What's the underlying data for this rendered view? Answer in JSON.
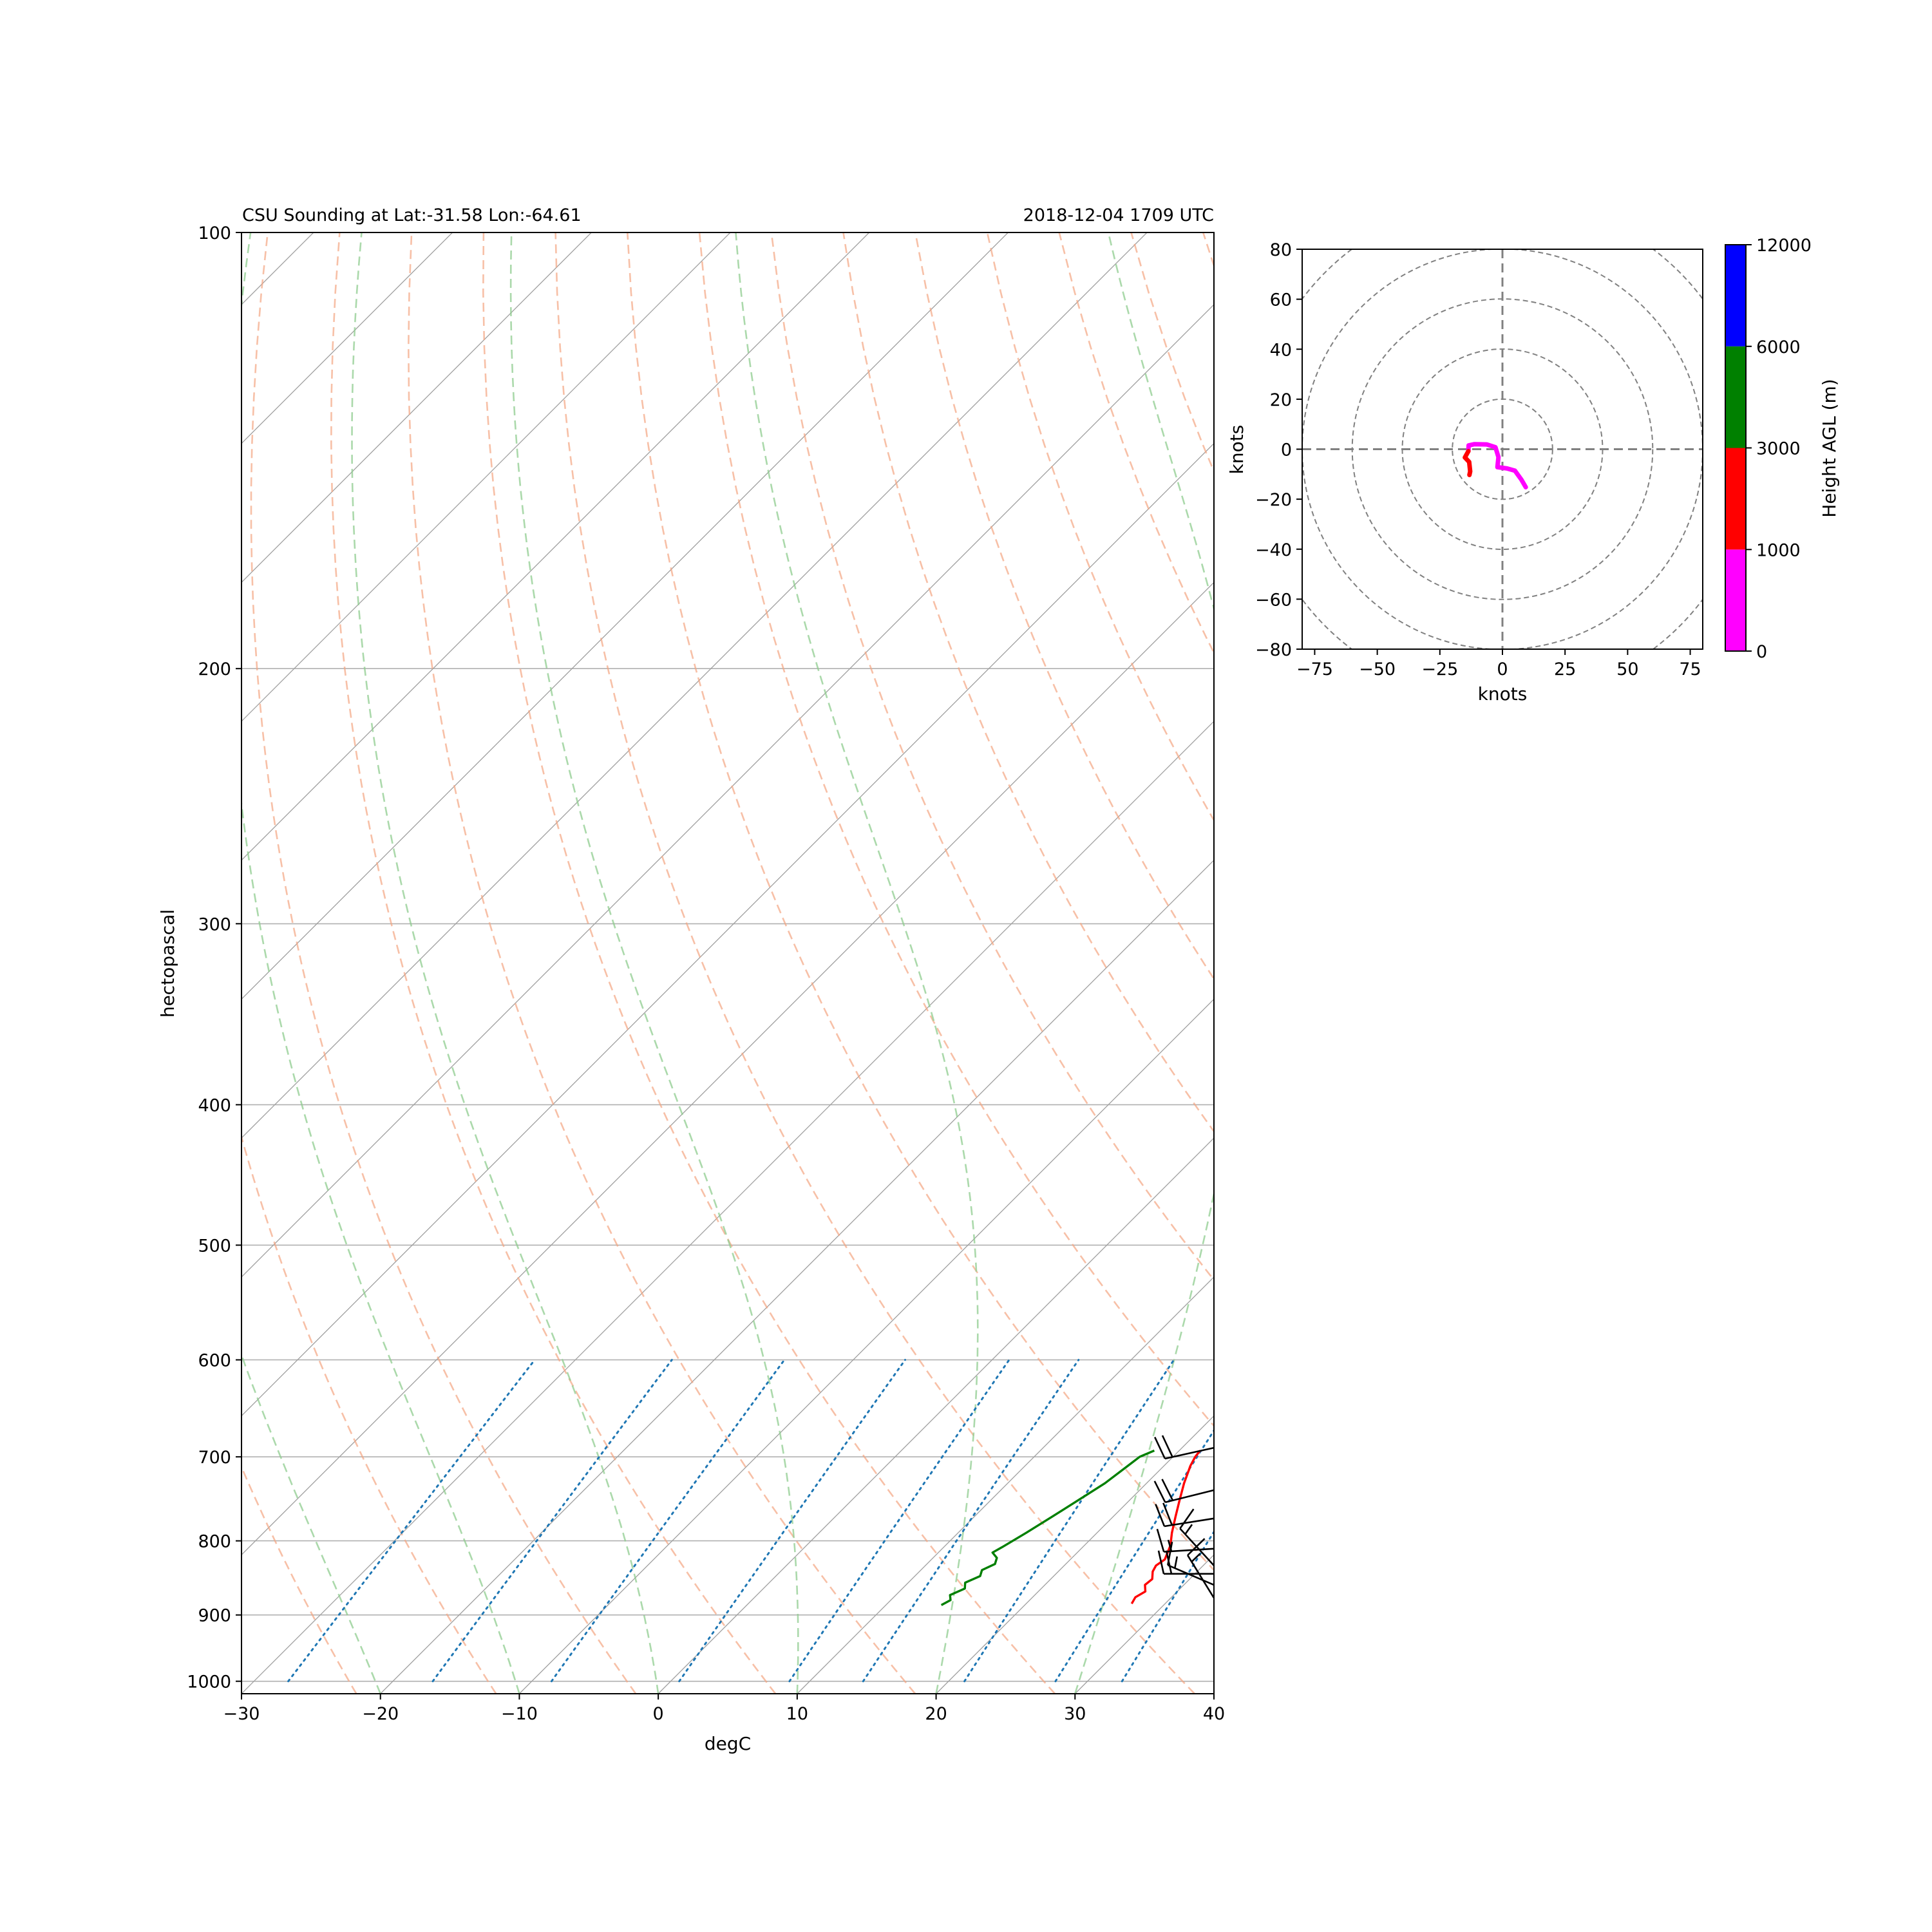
{
  "chart_data": [
    {
      "type": "line",
      "subtype": "skew-t log-p sounding",
      "title_left": "CSU Sounding at Lat:-31.58 Lon:-64.61",
      "title_right": "2018-12-04 1709 UTC",
      "xlabel": "degC",
      "ylabel": "hectopascal",
      "xlim": [
        -30,
        40
      ],
      "ylim": [
        1020,
        100
      ],
      "y_scale": "log",
      "xticks": [
        -30,
        -20,
        -10,
        0,
        10,
        20,
        30,
        40
      ],
      "xtick_labels": [
        "−30",
        "−20",
        "−10",
        "0",
        "10",
        "20",
        "30",
        "40"
      ],
      "yticks": [
        1000,
        900,
        800,
        700,
        600,
        500,
        400,
        300,
        200,
        100
      ],
      "ytick_labels": [
        "1000",
        "900",
        "800",
        "700",
        "600",
        "500",
        "400",
        "300",
        "200",
        "100"
      ],
      "grid": true,
      "background_lines": {
        "isotherms": {
          "color": "#a0a0a0",
          "style": "solid",
          "range": [
            -130,
            40
          ],
          "step": 10
        },
        "dry_adiabats": {
          "color": "#f4a582",
          "style": "dashed",
          "theta_K_range": [
            250,
            540
          ],
          "step": 10
        },
        "moist_adiabats": {
          "color": "#8fcc8f",
          "style": "dashed",
          "start_T_C": [
            -20,
            -10,
            0,
            10,
            20,
            30,
            40
          ]
        },
        "mixing_ratio_lines": {
          "color": "#1f77b4",
          "style": "dotted",
          "g_per_kg": [
            0.4,
            1,
            2,
            4,
            7,
            10,
            16,
            24,
            32
          ]
        }
      },
      "series": [
        {
          "color": "#ff0000",
          "points": [
            {
              "p": 884,
              "t": 27.6
            },
            {
              "p": 875,
              "t": 27.4
            },
            {
              "p": 867,
              "t": 27.7
            },
            {
              "p": 858,
              "t": 27.2
            },
            {
              "p": 850,
              "t": 27.3
            },
            {
              "p": 840,
              "t": 26.8
            },
            {
              "p": 832,
              "t": 26.6
            },
            {
              "p": 824,
              "t": 26.8
            },
            {
              "p": 815,
              "t": 26.5
            },
            {
              "p": 806,
              "t": 26.2
            },
            {
              "p": 790,
              "t": 25.4
            },
            {
              "p": 770,
              "t": 24.5
            },
            {
              "p": 750,
              "t": 23.6
            },
            {
              "p": 730,
              "t": 22.7
            },
            {
              "p": 710,
              "t": 21.9
            },
            {
              "p": 700,
              "t": 21.6
            },
            {
              "p": 693,
              "t": 21.5
            }
          ]
        },
        {
          "color": "#007f00",
          "points": [
            {
              "p": 886,
              "t": 14.0
            },
            {
              "p": 879,
              "t": 14.3
            },
            {
              "p": 872,
              "t": 13.9
            },
            {
              "p": 863,
              "t": 14.5
            },
            {
              "p": 855,
              "t": 14.1
            },
            {
              "p": 846,
              "t": 14.7
            },
            {
              "p": 838,
              "t": 14.4
            },
            {
              "p": 830,
              "t": 14.9
            },
            {
              "p": 822,
              "t": 14.6
            },
            {
              "p": 815,
              "t": 13.9
            },
            {
              "p": 808,
              "t": 14.2
            },
            {
              "p": 790,
              "t": 14.9
            },
            {
              "p": 770,
              "t": 15.6
            },
            {
              "p": 750,
              "t": 16.3
            },
            {
              "p": 730,
              "t": 17.0
            },
            {
              "p": 710,
              "t": 17.4
            },
            {
              "p": 700,
              "t": 17.6
            },
            {
              "p": 693,
              "t": 18.2
            }
          ]
        }
      ],
      "wind_barbs": [
        {
          "p": 690,
          "u": 18,
          "v": 4
        },
        {
          "p": 738,
          "u": 20,
          "v": 5
        },
        {
          "p": 772,
          "u": 19,
          "v": 3
        },
        {
          "p": 810,
          "u": 16,
          "v": 1
        },
        {
          "p": 832,
          "u": 11,
          "v": -12
        },
        {
          "p": 843,
          "u": 18,
          "v": 0
        },
        {
          "p": 858,
          "u": 14,
          "v": -6
        },
        {
          "p": 876,
          "u": 8,
          "v": -13
        }
      ]
    },
    {
      "type": "line",
      "subtype": "hodograph",
      "xlabel": "knots",
      "ylabel": "knots",
      "xlim": [
        -80,
        80
      ],
      "ylim": [
        -80,
        80
      ],
      "xticks": [
        -75,
        -50,
        -25,
        0,
        25,
        50,
        75
      ],
      "xtick_labels": [
        "−75",
        "−50",
        "−25",
        "0",
        "25",
        "50",
        "75"
      ],
      "yticks": [
        -80,
        -60,
        -40,
        -20,
        0,
        20,
        40,
        60,
        80
      ],
      "ytick_labels": [
        "−80",
        "−60",
        "−40",
        "−20",
        "0",
        "20",
        "40",
        "60",
        "80"
      ],
      "range_rings_kt": [
        20,
        40,
        60,
        80,
        100
      ],
      "series": [
        {
          "color": "#ff00ff",
          "points": [
            {
              "u": 9.3,
              "v": -15.2
            },
            {
              "u": 7.5,
              "v": -12.1
            },
            {
              "u": 5.0,
              "v": -8.6
            },
            {
              "u": 1.8,
              "v": -7.7
            },
            {
              "u": -2.0,
              "v": -7.2
            },
            {
              "u": -1.6,
              "v": -3.2
            },
            {
              "u": -2.8,
              "v": 0.8
            },
            {
              "u": -6.3,
              "v": 1.9
            },
            {
              "u": -11.2,
              "v": 2.0
            },
            {
              "u": -13.5,
              "v": 1.5
            },
            {
              "u": -13.6,
              "v": -0.8
            }
          ]
        },
        {
          "color": "#ff0000",
          "points": [
            {
              "u": -13.6,
              "v": -0.8
            },
            {
              "u": -15.0,
              "v": -3.3
            },
            {
              "u": -13.3,
              "v": -5.1
            },
            {
              "u": -12.9,
              "v": -8.9
            },
            {
              "u": -13.2,
              "v": -10.3
            }
          ]
        }
      ]
    },
    {
      "type": "colorbar",
      "label": "Height AGL (m)",
      "boundaries": [
        0,
        1000,
        3000,
        6000,
        12000
      ],
      "tick_labels": [
        "0",
        "1000",
        "3000",
        "6000",
        "12000"
      ],
      "colors": [
        "#ff00ff",
        "#ff0000",
        "#008000",
        "#0000ff"
      ]
    }
  ]
}
